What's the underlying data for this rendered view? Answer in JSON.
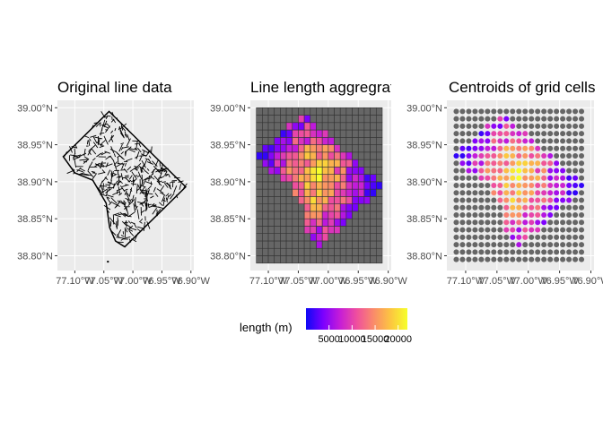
{
  "chart_data": [
    {
      "type": "map",
      "title": "Original line data",
      "xlim": [
        -77.13,
        -76.895
      ],
      "ylim": [
        38.78,
        39.01
      ],
      "x_ticks": [
        {
          "value": -77.1,
          "label": "77.10°W"
        },
        {
          "value": -77.05,
          "label": "77.05°W"
        },
        {
          "value": -77.0,
          "label": "77.00°W"
        },
        {
          "value": -76.95,
          "label": "76.95°W"
        },
        {
          "value": -76.9,
          "label": "76.90°W"
        }
      ],
      "y_ticks": [
        {
          "value": 38.8,
          "label": "38.80°N"
        },
        {
          "value": 38.85,
          "label": "38.85°N"
        },
        {
          "value": 38.9,
          "label": "38.90°N"
        },
        {
          "value": 38.95,
          "label": "38.95°N"
        },
        {
          "value": 39.0,
          "label": "39.00°N"
        }
      ],
      "grid": true,
      "layer": "black line network within the District boundary",
      "boundary": [
        [
          -77.041,
          38.995
        ],
        [
          -76.909,
          38.893
        ],
        [
          -77.014,
          38.812
        ],
        [
          -77.03,
          38.82
        ],
        [
          -77.04,
          38.838
        ],
        [
          -77.046,
          38.871
        ],
        [
          -77.069,
          38.902
        ],
        [
          -77.1,
          38.912
        ],
        [
          -77.12,
          38.934
        ]
      ]
    },
    {
      "type": "heatmap",
      "title": "Line length aggregrat",
      "xlim": [
        -77.13,
        -76.895
      ],
      "ylim": [
        38.78,
        39.01
      ],
      "x_ticks": [
        {
          "value": -77.1,
          "label": "77.10°W"
        },
        {
          "value": -77.05,
          "label": "77.05°W"
        },
        {
          "value": -77.0,
          "label": "77.00°W"
        },
        {
          "value": -76.95,
          "label": "76.95°W"
        },
        {
          "value": -76.9,
          "label": "76.90°W"
        }
      ],
      "y_ticks": [
        {
          "value": 38.8,
          "label": "38.80°N"
        },
        {
          "value": 38.85,
          "label": "38.85°N"
        },
        {
          "value": 38.9,
          "label": "38.90°N"
        },
        {
          "value": 38.95,
          "label": "38.95°N"
        },
        {
          "value": 39.0,
          "label": "39.00°N"
        }
      ],
      "grid": true,
      "grid_cells": {
        "lon_min": -77.12,
        "lat_min": 38.79,
        "cell_size": 0.01,
        "cols": 21,
        "rows": 21,
        "empty_color": "#666666",
        "border_color": "#333333"
      },
      "length_field": "length (m)",
      "value_range": [
        0,
        22000
      ],
      "values_estimated": true
    },
    {
      "type": "scatter",
      "title": "Centroids of grid cells",
      "xlim": [
        -77.13,
        -76.895
      ],
      "ylim": [
        38.78,
        39.01
      ],
      "x_ticks": [
        {
          "value": -77.1,
          "label": "77.10°W"
        },
        {
          "value": -77.05,
          "label": "77.05°W"
        },
        {
          "value": -77.0,
          "label": "77.00°W"
        },
        {
          "value": -76.95,
          "label": "76.95°W"
        },
        {
          "value": -76.9,
          "label": "76.90°W"
        }
      ],
      "y_ticks": [
        {
          "value": 38.8,
          "label": "38.80°N"
        },
        {
          "value": 38.85,
          "label": "38.85°N"
        },
        {
          "value": 38.9,
          "label": "38.90°N"
        },
        {
          "value": 38.95,
          "label": "38.95°N"
        },
        {
          "value": 39.0,
          "label": "39.00°N"
        }
      ],
      "grid": true,
      "points": "centroids of the same grid cells, colored by length (m); grey where no length"
    }
  ],
  "legend": {
    "title": "length (m)",
    "ticks": [
      {
        "value": 5000,
        "label": "5000"
      },
      {
        "value": 10000,
        "label": "10000"
      },
      {
        "value": 15000,
        "label": "15000"
      },
      {
        "value": 20000,
        "label": "20000"
      }
    ],
    "range": [
      0,
      22000
    ],
    "colors": [
      "#0d08f5",
      "#7a00ff",
      "#c51cd8",
      "#ef4f9e",
      "#fa8b6a",
      "#fcc541",
      "#f6ff2b"
    ],
    "placement": "bottom"
  },
  "colors": {
    "panel_background": "#ebebeb",
    "gridline": "#ffffff",
    "empty_cell": "#666666",
    "line": "#000000"
  }
}
